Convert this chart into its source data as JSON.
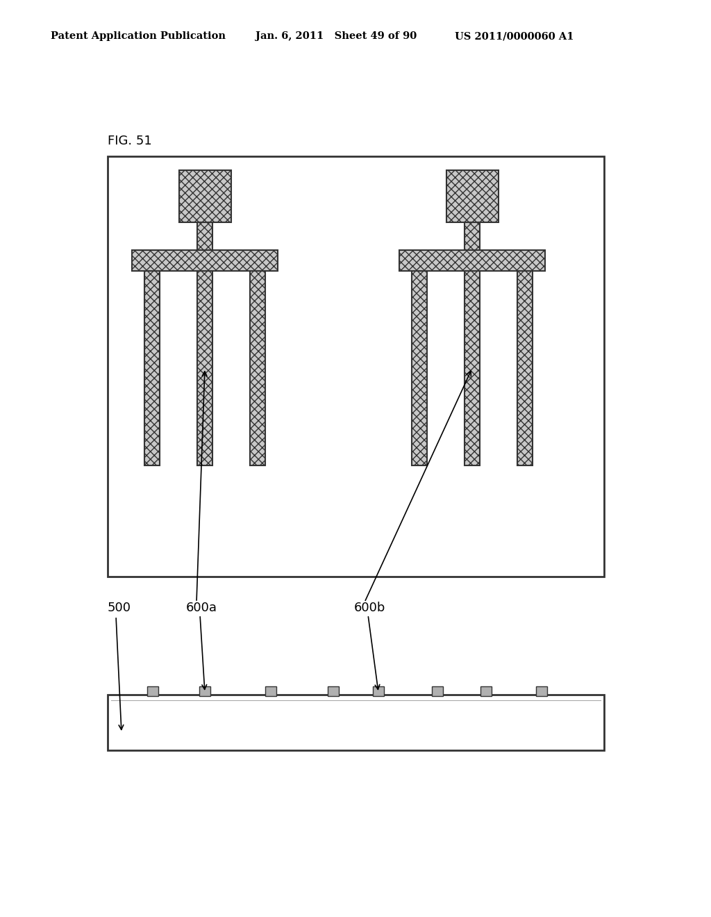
{
  "background_color": "#ffffff",
  "header_left": "Patent Application Publication",
  "header_mid": "Jan. 6, 2011   Sheet 49 of 90",
  "header_right": "US 2011/0000060 A1",
  "fig_label": "FIG. 51",
  "label_500": "500",
  "label_600a": "600a",
  "label_600b": "600b",
  "outline_color": "#333333",
  "light_gray": "#c8c8c8",
  "pad_hatch": "xxx",
  "bar_hatch": "xxx"
}
